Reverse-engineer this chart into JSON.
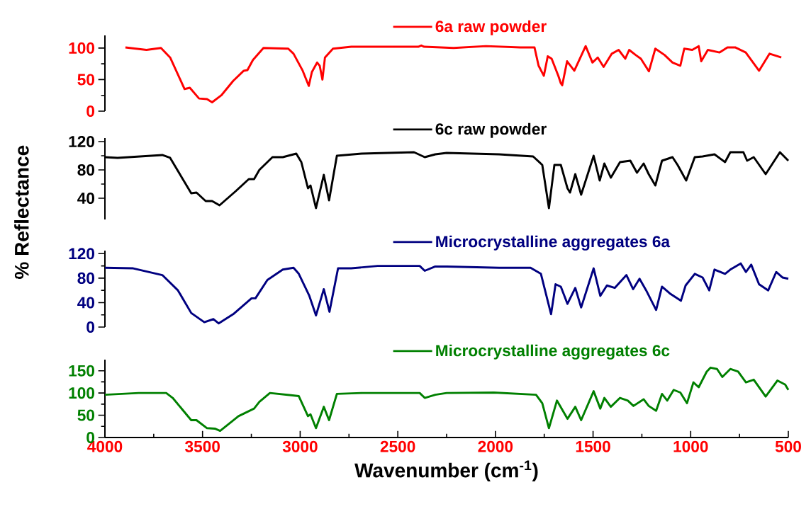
{
  "chart_data": [
    {
      "type": "line",
      "legend": "top",
      "tick_labels": "y",
      "xlim": [
        4000,
        500
      ],
      "ylim": [
        0,
        120
      ],
      "yticks": [
        0,
        50,
        100
      ],
      "x": [
        3895,
        3787,
        3713,
        3666,
        3592,
        3565,
        3518,
        3477,
        3451,
        3404,
        3343,
        3289,
        3270,
        3242,
        3188,
        3061,
        3034,
        2987,
        2956,
        2940,
        2913,
        2900,
        2886,
        2873,
        2832,
        2738,
        2395,
        2380,
        2365,
        2214,
        2048,
        1873,
        1800,
        1779,
        1752,
        1732,
        1712,
        1678,
        1665,
        1658,
        1633,
        1596,
        1538,
        1503,
        1476,
        1446,
        1404,
        1369,
        1335,
        1315,
        1282,
        1255,
        1214,
        1181,
        1134,
        1093,
        1053,
        1033,
        992,
        959,
        946,
        912,
        852,
        812,
        772,
        718,
        650,
        596,
        536
      ],
      "series": [
        {
          "name": "6a raw powder",
          "color": "#ff0000",
          "values": [
            101,
            97,
            100,
            85,
            35,
            37,
            20,
            19,
            14,
            25,
            48,
            64,
            65,
            81,
            100,
            99,
            91,
            64,
            40,
            62,
            77,
            72,
            50,
            85,
            99,
            102,
            102,
            104,
            102,
            100,
            103,
            101,
            101,
            72,
            56,
            87,
            83,
            56,
            44,
            41,
            79,
            64,
            103,
            77,
            85,
            70,
            91,
            97,
            83,
            97,
            89,
            83,
            63,
            99,
            89,
            77,
            72,
            99,
            97,
            103,
            79,
            97,
            93,
            101,
            101,
            93,
            64,
            91,
            85
          ]
        }
      ]
    },
    {
      "type": "line",
      "legend": "top",
      "tick_labels": "y",
      "ylabel": "% Reflectance",
      "xlim": [
        4000,
        500
      ],
      "ylim": [
        10,
        125
      ],
      "yticks": [
        40,
        80,
        120
      ],
      "x": [
        4000,
        3935,
        3706,
        3666,
        3558,
        3531,
        3484,
        3451,
        3413,
        3330,
        3263,
        3236,
        3209,
        3142,
        3089,
        3020,
        2994,
        2960,
        2947,
        2919,
        2879,
        2852,
        2812,
        2686,
        2417,
        2362,
        2308,
        2250,
        1981,
        1807,
        1760,
        1726,
        1698,
        1665,
        1631,
        1618,
        1591,
        1561,
        1497,
        1466,
        1442,
        1409,
        1362,
        1309,
        1275,
        1241,
        1215,
        1181,
        1147,
        1093,
        1067,
        1023,
        979,
        939,
        878,
        824,
        797,
        730,
        711,
        677,
        616,
        543,
        500
      ],
      "series": [
        {
          "name": "6c raw powder",
          "color": "#000000",
          "values": [
            98,
            97,
            101,
            97,
            47,
            48,
            36,
            36,
            30,
            50,
            67,
            67,
            80,
            98,
            98,
            103,
            91,
            54,
            58,
            26,
            73,
            37,
            100,
            103,
            105,
            98,
            102,
            104,
            102,
            99,
            87,
            26,
            87,
            87,
            54,
            48,
            74,
            45,
            100,
            65,
            89,
            69,
            91,
            93,
            76,
            89,
            74,
            58,
            93,
            98,
            87,
            65,
            98,
            99,
            102,
            91,
            105,
            105,
            93,
            98,
            74,
            105,
            93
          ]
        }
      ]
    },
    {
      "type": "line",
      "legend": "top",
      "tick_labels": "y",
      "xlim": [
        4000,
        500
      ],
      "ylim": [
        0,
        125
      ],
      "yticks": [
        0,
        40,
        80,
        120
      ],
      "x": [
        4000,
        3855,
        3706,
        3626,
        3558,
        3491,
        3444,
        3417,
        3343,
        3249,
        3229,
        3168,
        3089,
        3034,
        3007,
        2953,
        2919,
        2879,
        2850,
        2806,
        2739,
        2603,
        2388,
        2362,
        2308,
        2250,
        1981,
        1820,
        1767,
        1715,
        1692,
        1665,
        1631,
        1591,
        1561,
        1497,
        1463,
        1429,
        1389,
        1329,
        1295,
        1262,
        1228,
        1177,
        1147,
        1107,
        1050,
        1026,
        979,
        939,
        905,
        878,
        824,
        797,
        744,
        717,
        690,
        650,
        603,
        562,
        529,
        500
      ],
      "series": [
        {
          "name": "Microcrystalline aggregates 6a",
          "color": "#000080",
          "values": [
            97,
            96,
            85,
            60,
            23,
            8,
            13,
            6,
            21,
            47,
            47,
            77,
            94,
            97,
            87,
            51,
            19,
            62,
            25,
            96,
            96,
            100,
            100,
            92,
            99,
            99,
            97,
            97,
            87,
            21,
            70,
            66,
            38,
            64,
            32,
            96,
            51,
            68,
            64,
            85,
            62,
            79,
            60,
            28,
            66,
            55,
            43,
            68,
            87,
            81,
            60,
            94,
            87,
            94,
            104,
            90,
            102,
            70,
            60,
            90,
            81,
            79
          ]
        }
      ]
    },
    {
      "type": "line",
      "legend": "top",
      "xlabel": "Wavenumber (cm$^{-1}$)",
      "xlim": [
        4000,
        500
      ],
      "xticks": [
        4000,
        3500,
        3000,
        2500,
        2000,
        1500,
        1000,
        500
      ],
      "ylim": [
        0,
        175
      ],
      "yticks": [
        0,
        50,
        100,
        150
      ],
      "x": [
        4000,
        3827,
        3686,
        3653,
        3558,
        3531,
        3477,
        3437,
        3410,
        3316,
        3236,
        3209,
        3155,
        3047,
        3007,
        2960,
        2947,
        2919,
        2879,
        2852,
        2812,
        2686,
        2388,
        2362,
        2308,
        2250,
        2008,
        1792,
        1760,
        1726,
        1685,
        1631,
        1591,
        1561,
        1497,
        1463,
        1442,
        1409,
        1362,
        1322,
        1293,
        1241,
        1215,
        1177,
        1147,
        1120,
        1087,
        1053,
        1019,
        986,
        959,
        918,
        898,
        865,
        838,
        797,
        757,
        717,
        677,
        616,
        556,
        516,
        500
      ],
      "series": [
        {
          "name": "Microcrystalline aggregates 6c",
          "color": "#008000",
          "values": [
            96,
            100,
            100,
            89,
            39,
            39,
            21,
            20,
            15,
            48,
            65,
            80,
            100,
            95,
            93,
            48,
            52,
            21,
            69,
            39,
            98,
            100,
            100,
            89,
            96,
            100,
            101,
            96,
            77,
            21,
            83,
            42,
            69,
            39,
            104,
            65,
            89,
            69,
            89,
            83,
            71,
            86,
            71,
            60,
            98,
            83,
            107,
            101,
            77,
            124,
            113,
            148,
            157,
            154,
            136,
            154,
            148,
            124,
            130,
            92,
            128,
            119,
            107
          ]
        }
      ]
    }
  ]
}
